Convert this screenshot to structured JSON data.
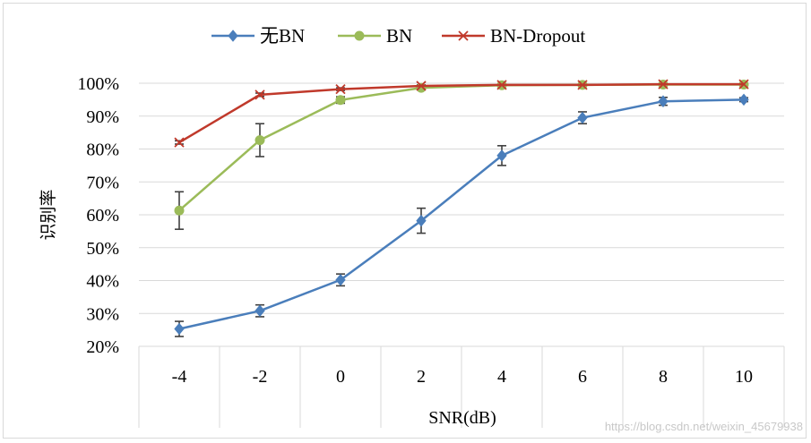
{
  "chart_data": {
    "type": "line",
    "xlabel": "SNR(dB)",
    "ylabel": "识别率",
    "categories": [
      "-4",
      "-2",
      "0",
      "2",
      "4",
      "6",
      "8",
      "10"
    ],
    "yticks": [
      "20%",
      "30%",
      "40%",
      "50%",
      "60%",
      "70%",
      "80%",
      "90%",
      "100%"
    ],
    "ylim": [
      20,
      100
    ],
    "grid": true,
    "legend_position": "top",
    "series": [
      {
        "name": "无BN",
        "color": "#4a7ebb",
        "marker": "diamond",
        "values": [
          25.3,
          30.8,
          40.2,
          58.2,
          78.0,
          89.5,
          94.5,
          95.0
        ],
        "error": [
          2.3,
          1.8,
          1.8,
          3.8,
          3.0,
          1.8,
          1.2,
          0.6
        ]
      },
      {
        "name": "BN",
        "color": "#9bbb59",
        "marker": "circle",
        "values": [
          61.3,
          82.7,
          94.9,
          98.6,
          99.4,
          99.5,
          99.6,
          99.6
        ],
        "error": [
          5.7,
          5.0,
          1.0,
          0.6,
          0.4,
          0.3,
          0.3,
          0.3
        ]
      },
      {
        "name": "BN-Dropout",
        "color": "#c0392b",
        "marker": "x",
        "values": [
          82.0,
          96.5,
          98.2,
          99.2,
          99.5,
          99.5,
          99.7,
          99.7
        ],
        "error": [
          0.5,
          0.5,
          0.4,
          0.3,
          0.2,
          0.2,
          0.2,
          0.2
        ]
      }
    ]
  },
  "watermark": "https://blog.csdn.net/weixin_45679938"
}
